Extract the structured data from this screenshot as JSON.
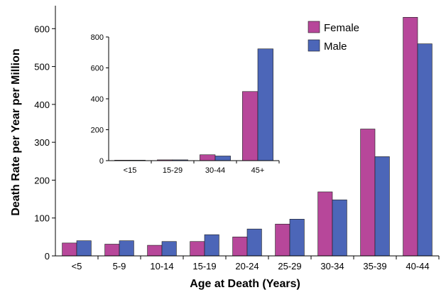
{
  "chart_data": [
    {
      "type": "bar",
      "title": "",
      "xlabel": "Age at Death (Years)",
      "ylabel": "Death Rate per Year per Million",
      "categories": [
        "<5",
        "5-9",
        "10-14",
        "15-19",
        "20-24",
        "25-29",
        "30-34",
        "35-39",
        "40-44"
      ],
      "series": [
        {
          "name": "Female",
          "color": "#b7479a",
          "values": [
            34,
            31,
            28,
            38,
            50,
            84,
            169,
            335,
            630
          ]
        },
        {
          "name": "Male",
          "color": "#4c66b8",
          "values": [
            40,
            40,
            38,
            56,
            71,
            97,
            148,
            262,
            560
          ]
        }
      ],
      "ylim": [
        0,
        640
      ],
      "yticks": [
        0,
        100,
        200,
        300,
        400,
        500,
        600
      ],
      "legend": "top-right",
      "grid": false
    },
    {
      "type": "bar",
      "title": "",
      "xlabel": "",
      "ylabel": "",
      "categories": [
        "<15",
        "15-29",
        "30-44",
        "45+"
      ],
      "series": [
        {
          "name": "Female",
          "color": "#b7479a",
          "values": [
            3,
            5,
            38,
            447
          ]
        },
        {
          "name": "Male",
          "color": "#4c66b8",
          "values": [
            3,
            5,
            30,
            723
          ]
        }
      ],
      "ylim": [
        0,
        800
      ],
      "yticks": [
        0,
        200,
        400,
        600,
        800
      ],
      "grid": false
    }
  ]
}
